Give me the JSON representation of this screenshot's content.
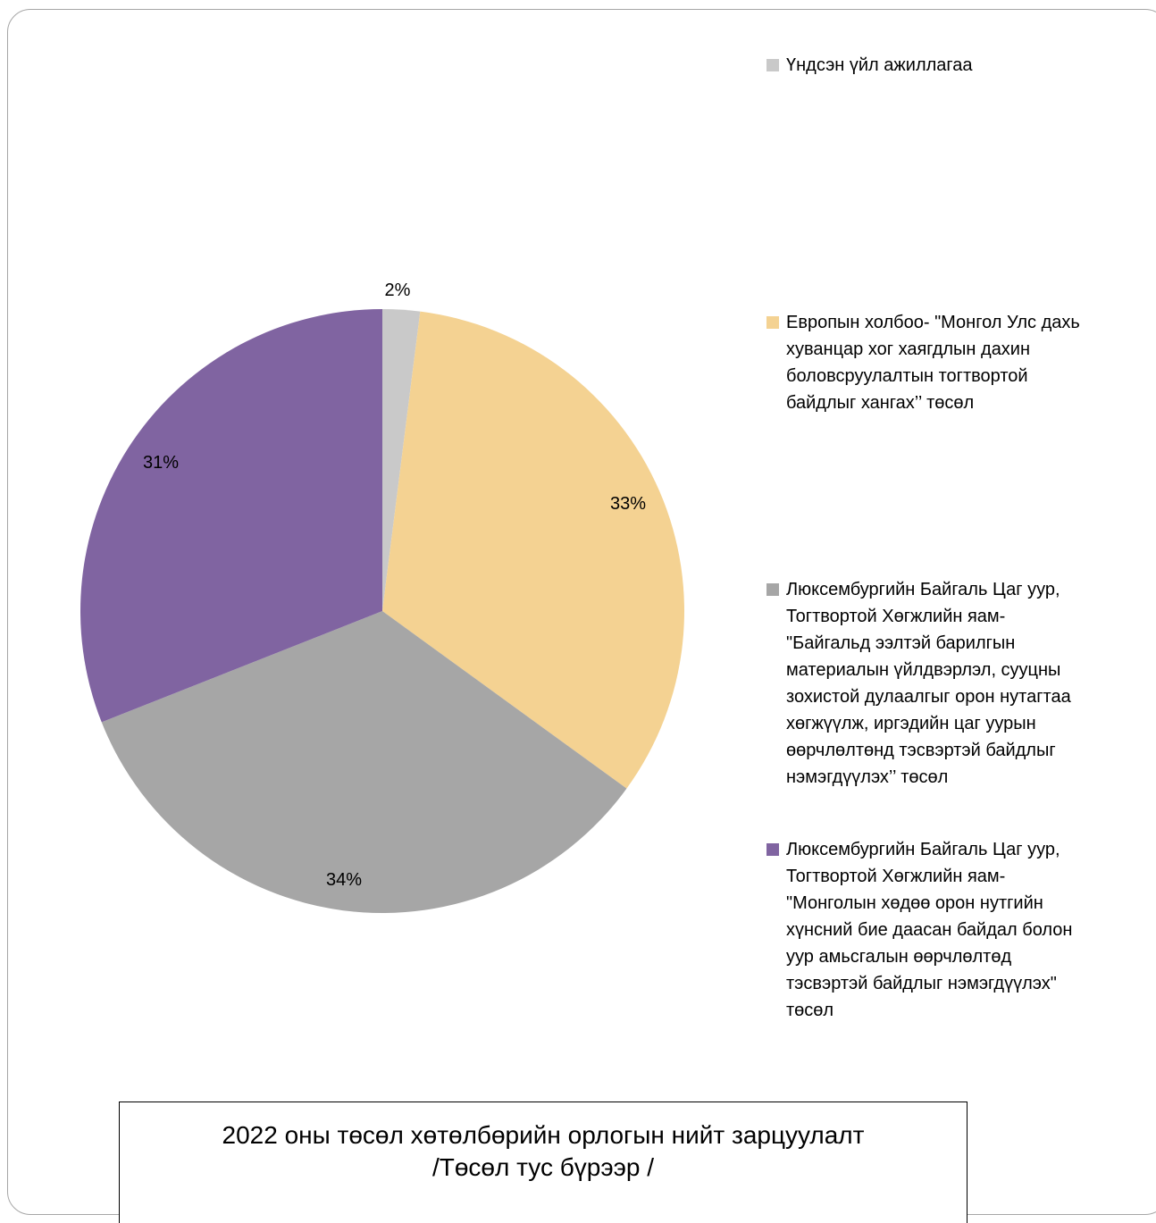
{
  "chart_data": {
    "type": "pie",
    "title": "2022 оны төсөл хөтөлбөрийн орлогын нийт зарцуулалт",
    "subtitle": "/Төсөл тус бүрээр /",
    "legend_position": "right",
    "slices": [
      {
        "label": "Үндсэн үйл ажиллагаа",
        "value": 2,
        "value_label": "2%",
        "color": "#c9c9c9"
      },
      {
        "label": "Европын холбоо- \"Монгол Улс дахь\nхуванцар хог хаягдлын дахин\nболовсруулалтын тогтвортой\nбайдлыг хангах’’ төсөл",
        "value": 33,
        "value_label": "33%",
        "color": "#f4d292"
      },
      {
        "label": "Люксембургийн Байгаль Цаг уур,\nТогтвортой Хөгжлийн яам-\n\"Байгальд ээлтэй барилгын\nматериалын үйлдвэрлэл, сууцны\nзохистой дулаалгыг орон нутагтаа\nхөгжүүлж, иргэдийн цаг уурын\nөөрчлөлтөнд тэсвэртэй байдлыг\nнэмэгдүүлэх’’ төсөл",
        "value": 34,
        "value_label": "34%",
        "color": "#a6a6a6"
      },
      {
        "label": "Люксембургийн Байгаль Цаг уур,\nТогтвортой Хөгжлийн яам-\n\"Монголын хөдөө орон нутгийн\nхүнсний бие даасан байдал болон\nуур амьсгалын өөрчлөлтөд\nтэсвэртэй байдлыг нэмэгдүүлэх\"\nтөсөл",
        "value": 31,
        "value_label": "31%",
        "color": "#8064a1"
      }
    ]
  }
}
